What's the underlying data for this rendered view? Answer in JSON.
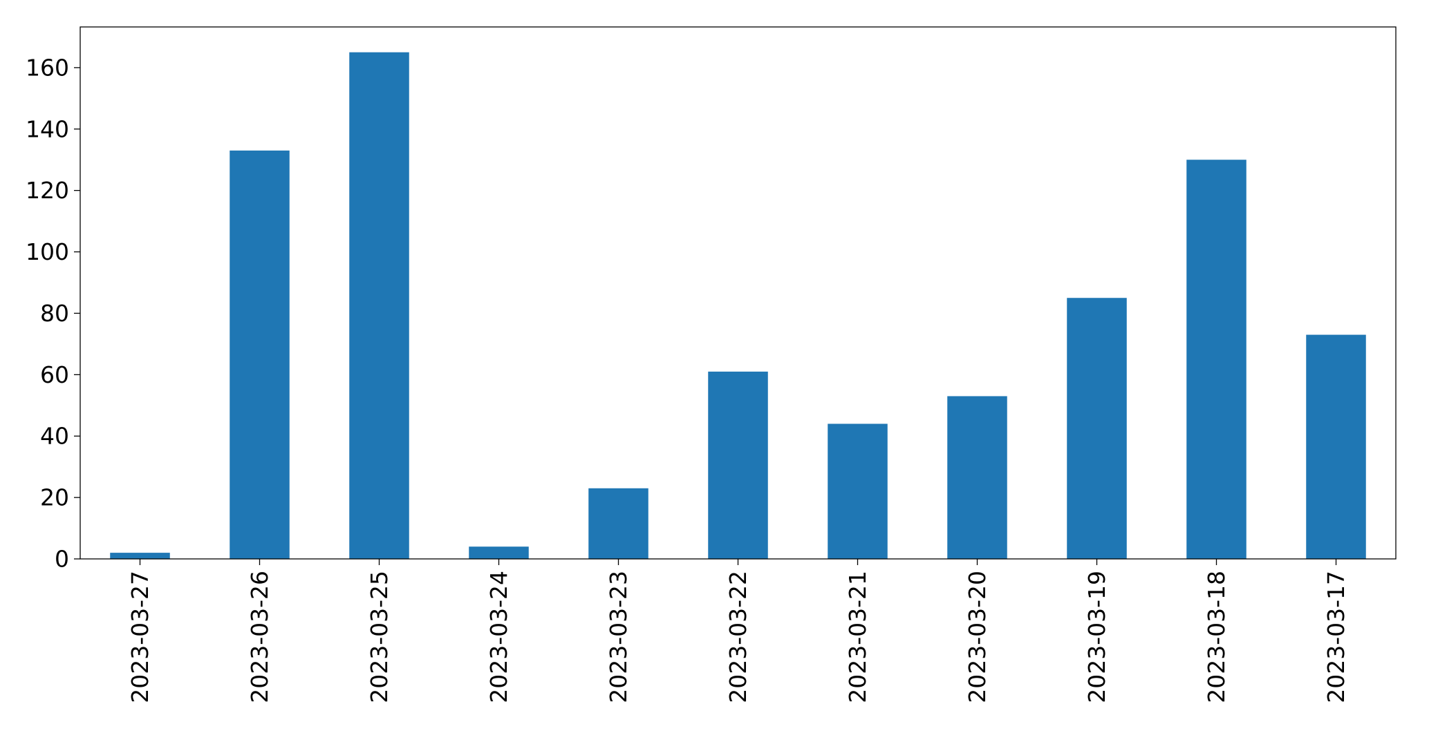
{
  "chart_data": {
    "type": "bar",
    "title": "",
    "xlabel": "",
    "ylabel": "",
    "categories": [
      "2023-03-27",
      "2023-03-26",
      "2023-03-25",
      "2023-03-24",
      "2023-03-23",
      "2023-03-22",
      "2023-03-21",
      "2023-03-20",
      "2023-03-19",
      "2023-03-18",
      "2023-03-17"
    ],
    "values": [
      2,
      133,
      165,
      4,
      23,
      61,
      44,
      53,
      85,
      130,
      73
    ],
    "ylim": [
      0,
      173.25
    ],
    "yticks": [
      0,
      20,
      40,
      60,
      80,
      100,
      120,
      140,
      160
    ],
    "bar_color": "#1f77b4",
    "grid": false,
    "legend": "none"
  }
}
